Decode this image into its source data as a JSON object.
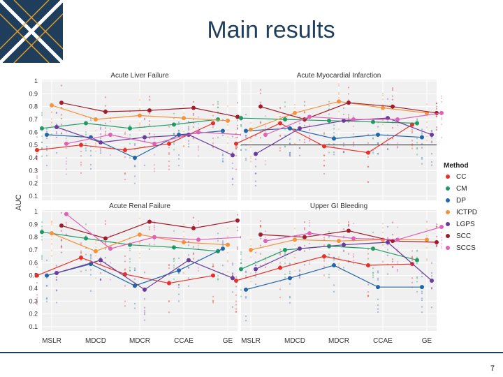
{
  "slide": {
    "title": "Main results",
    "page_number": "7"
  },
  "colors": {
    "CC": "#e8302a",
    "CM": "#1f9a63",
    "DP": "#2266aa",
    "ICTPD": "#f5923a",
    "LGPS": "#6a3a9a",
    "SCC": "#a31a2a",
    "SCCS": "#e060b8"
  },
  "chart_data": {
    "type": "line",
    "ylabel": "AUC",
    "categories": [
      "MSLR",
      "MDCD",
      "MDCR",
      "CCAE",
      "GE"
    ],
    "ylim": [
      0.1,
      1.0
    ],
    "yticks": [
      0.1,
      0.2,
      0.3,
      0.4,
      0.5,
      0.6,
      0.7,
      0.8,
      0.9,
      1
    ],
    "legend": {
      "title": "Method",
      "position": "right",
      "entries": [
        "CC",
        "CM",
        "DP",
        "ICTPD",
        "LGPS",
        "SCC",
        "SCCS"
      ]
    },
    "panels": [
      {
        "title": "Acute Liver Failure",
        "reference_line": null,
        "series": [
          {
            "name": "CC",
            "values": [
              0.46,
              0.5,
              0.46,
              0.51,
              0.67
            ]
          },
          {
            "name": "CM",
            "values": [
              0.63,
              0.67,
              0.63,
              0.66,
              0.7
            ]
          },
          {
            "name": "DP",
            "values": [
              0.58,
              0.56,
              0.4,
              0.58,
              0.61
            ]
          },
          {
            "name": "ICTPD",
            "values": [
              0.81,
              0.7,
              0.73,
              0.71,
              0.69
            ]
          },
          {
            "name": "LGPS",
            "values": [
              0.64,
              0.52,
              0.56,
              0.58,
              0.42
            ]
          },
          {
            "name": "SCC",
            "values": [
              0.83,
              0.76,
              0.77,
              0.79,
              0.72
            ]
          },
          {
            "name": "SCCS",
            "values": [
              0.51,
              0.58,
              0.51,
              0.6,
              0.58
            ]
          }
        ]
      },
      {
        "title": "Acute Myocardial Infarction",
        "reference_line": 0.5,
        "series": [
          {
            "name": "CC",
            "values": [
              0.51,
              0.67,
              0.49,
              0.44,
              0.66
            ]
          },
          {
            "name": "CM",
            "values": [
              0.71,
              0.7,
              0.69,
              0.68,
              0.67
            ]
          },
          {
            "name": "DP",
            "values": [
              0.61,
              0.63,
              0.55,
              0.58,
              0.56
            ]
          },
          {
            "name": "ICTPD",
            "values": [
              0.62,
              0.75,
              0.84,
              0.79,
              0.75
            ]
          },
          {
            "name": "LGPS",
            "values": [
              0.43,
              0.63,
              0.69,
              0.71,
              0.58
            ]
          },
          {
            "name": "SCC",
            "values": [
              0.8,
              0.7,
              0.83,
              0.8,
              0.75
            ]
          },
          {
            "name": "SCCS",
            "values": [
              0.58,
              0.72,
              0.7,
              0.7,
              0.75
            ]
          }
        ]
      },
      {
        "title": "Acute Renal Failure",
        "reference_line": null,
        "series": [
          {
            "name": "CC",
            "values": [
              0.5,
              0.64,
              0.51,
              0.44,
              0.5
            ]
          },
          {
            "name": "CM",
            "values": [
              0.84,
              0.79,
              0.74,
              0.72,
              0.69
            ]
          },
          {
            "name": "DP",
            "values": [
              0.5,
              0.59,
              0.42,
              0.54,
              0.71
            ]
          },
          {
            "name": "ICTPD",
            "values": [
              0.83,
              0.69,
              0.82,
              0.76,
              0.74
            ]
          },
          {
            "name": "LGPS",
            "values": [
              0.52,
              0.62,
              0.39,
              0.62,
              0.48
            ]
          },
          {
            "name": "SCC",
            "values": [
              0.89,
              0.79,
              0.92,
              0.87,
              0.93
            ]
          },
          {
            "name": "SCCS",
            "values": [
              0.98,
              0.71,
              0.8,
              0.78,
              0.8
            ]
          }
        ]
      },
      {
        "title": "Upper GI Bleeding",
        "reference_line": null,
        "series": [
          {
            "name": "CC",
            "values": [
              0.46,
              0.56,
              0.65,
              0.58,
              0.59
            ]
          },
          {
            "name": "CM",
            "values": [
              0.55,
              0.7,
              0.73,
              0.71,
              0.62
            ]
          },
          {
            "name": "DP",
            "values": [
              0.39,
              0.48,
              0.58,
              0.41,
              0.41
            ]
          },
          {
            "name": "ICTPD",
            "values": [
              0.7,
              0.78,
              0.77,
              0.78,
              0.78
            ]
          },
          {
            "name": "LGPS",
            "values": [
              0.55,
              0.71,
              0.74,
              0.76,
              0.46
            ]
          },
          {
            "name": "SCC",
            "values": [
              0.82,
              0.8,
              0.85,
              0.77,
              0.76
            ]
          },
          {
            "name": "SCCS",
            "values": [
              0.77,
              0.83,
              0.79,
              0.78,
              0.88
            ]
          }
        ]
      }
    ]
  }
}
